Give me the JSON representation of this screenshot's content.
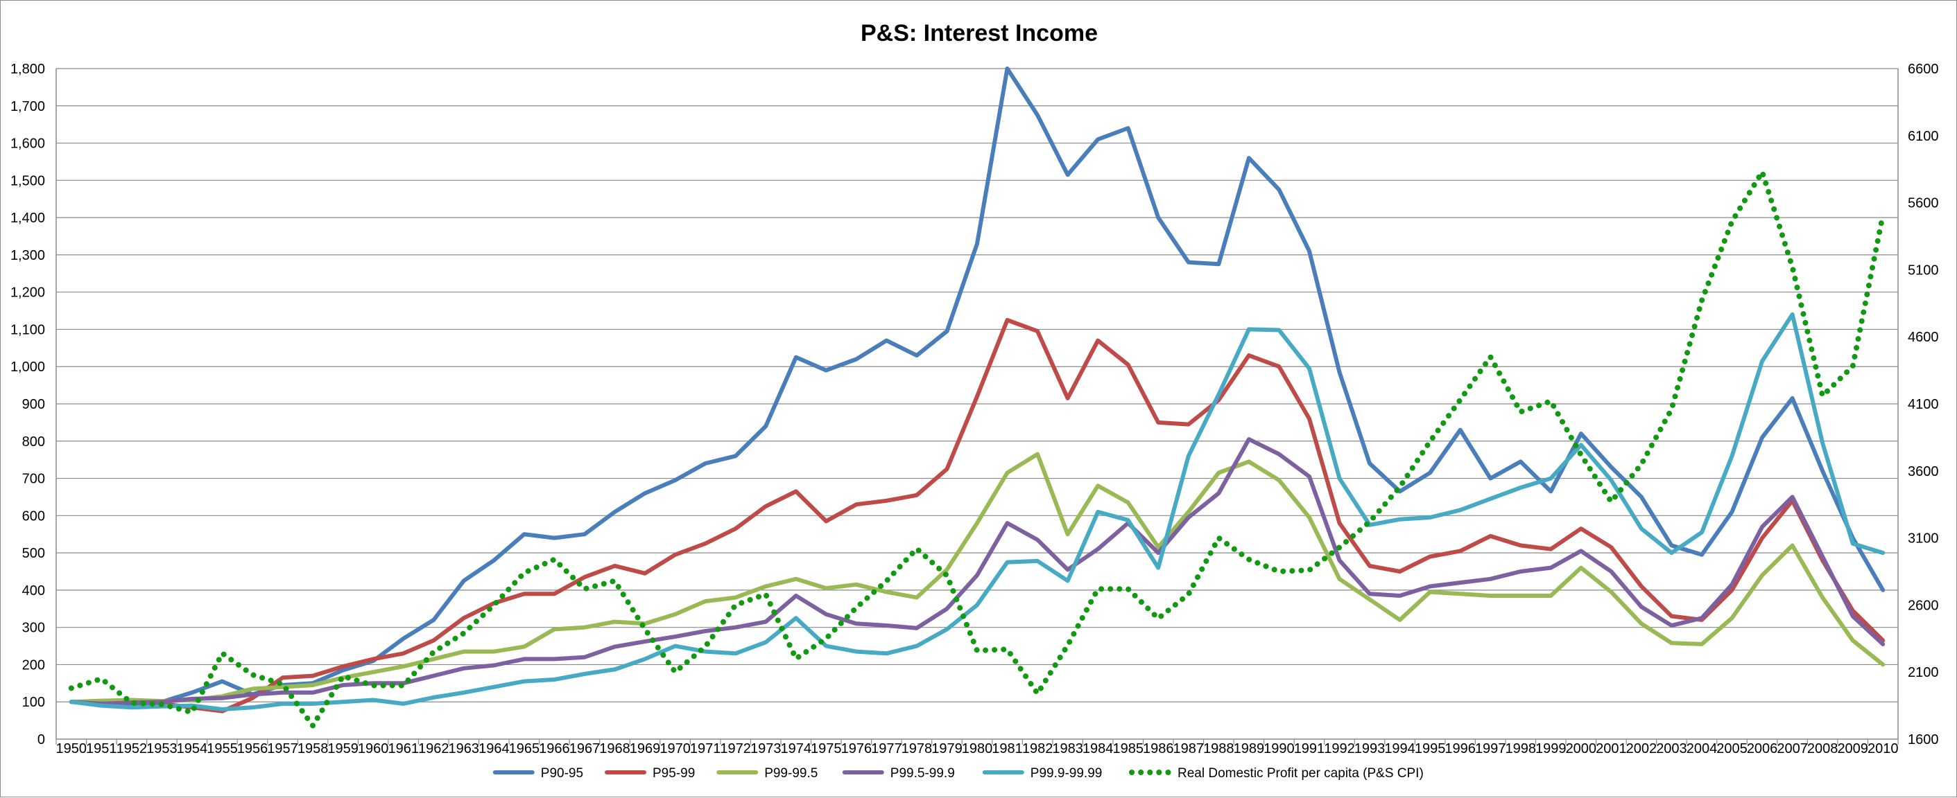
{
  "chart_data": {
    "type": "line",
    "title": "P&S: Interest Income",
    "xlabel": "",
    "ylabel": "",
    "y2label": "",
    "ylim": [
      0,
      1800
    ],
    "y2lim": [
      1600,
      6600
    ],
    "y_ticks": [
      "0",
      "100",
      "200",
      "300",
      "400",
      "500",
      "600",
      "700",
      "800",
      "900",
      "1,000",
      "1,100",
      "1,200",
      "1,300",
      "1,400",
      "1,500",
      "1,600",
      "1,700",
      "1,800"
    ],
    "y2_ticks": [
      "1600",
      "2100",
      "2600",
      "3100",
      "3600",
      "4100",
      "4600",
      "5100",
      "5600",
      "6100",
      "6600"
    ],
    "grid": true,
    "legend_position": "bottom",
    "categories": [
      "1950",
      "1951",
      "1952",
      "1953",
      "1954",
      "1955",
      "1956",
      "1957",
      "1958",
      "1959",
      "1960",
      "1961",
      "1962",
      "1963",
      "1964",
      "1965",
      "1966",
      "1967",
      "1968",
      "1969",
      "1970",
      "1971",
      "1972",
      "1973",
      "1974",
      "1975",
      "1976",
      "1977",
      "1978",
      "1979",
      "1980",
      "1981",
      "1982",
      "1983",
      "1984",
      "1985",
      "1986",
      "1987",
      "1988",
      "1989",
      "1990",
      "1991",
      "1992",
      "1993",
      "1994",
      "1995",
      "1996",
      "1997",
      "1998",
      "1999",
      "2000",
      "2001",
      "2002",
      "2003",
      "2004",
      "2005",
      "2006",
      "2007",
      "2008",
      "2009",
      "2010"
    ],
    "series": [
      {
        "name": "P90-95",
        "axis": "left",
        "color": "#4a7ebb",
        "style": "solid",
        "values": [
          100,
          95,
          95,
          100,
          125,
          155,
          120,
          145,
          150,
          185,
          210,
          270,
          320,
          425,
          480,
          550,
          540,
          550,
          610,
          660,
          695,
          740,
          760,
          840,
          1025,
          990,
          1020,
          1070,
          1030,
          1095,
          1330,
          1800,
          1675,
          1515,
          1610,
          1640,
          1400,
          1280,
          1275,
          1560,
          1475,
          1310,
          985,
          740,
          665,
          715,
          830,
          700,
          745,
          665,
          820,
          730,
          650,
          520,
          495,
          610,
          810,
          915,
          720,
          540,
          400
        ]
      },
      {
        "name": "P95-99",
        "axis": "left",
        "color": "#be4b48",
        "style": "solid",
        "values": [
          100,
          100,
          98,
          95,
          85,
          75,
          110,
          165,
          170,
          195,
          215,
          230,
          265,
          325,
          365,
          390,
          390,
          435,
          465,
          445,
          495,
          525,
          565,
          625,
          665,
          585,
          630,
          640,
          655,
          725,
          920,
          1125,
          1095,
          915,
          1070,
          1005,
          850,
          845,
          910,
          1030,
          1000,
          860,
          580,
          465,
          450,
          490,
          505,
          545,
          520,
          510,
          565,
          515,
          410,
          330,
          320,
          400,
          540,
          640,
          480,
          345,
          265
        ]
      },
      {
        "name": "P99-99.5",
        "axis": "left",
        "color": "#98b954",
        "style": "solid",
        "values": [
          100,
          103,
          105,
          102,
          105,
          115,
          135,
          140,
          145,
          165,
          180,
          195,
          215,
          235,
          235,
          248,
          295,
          300,
          315,
          310,
          335,
          370,
          380,
          410,
          430,
          405,
          415,
          395,
          380,
          455,
          580,
          715,
          765,
          550,
          680,
          635,
          515,
          610,
          715,
          745,
          695,
          595,
          430,
          375,
          320,
          395,
          390,
          385,
          385,
          385,
          460,
          395,
          310,
          258,
          255,
          325,
          440,
          520,
          380,
          265,
          200
        ]
      },
      {
        "name": "P99.5-99.9",
        "axis": "left",
        "color": "#7d60a0",
        "style": "solid",
        "values": [
          100,
          95,
          98,
          100,
          108,
          110,
          120,
          125,
          125,
          145,
          150,
          150,
          170,
          190,
          198,
          215,
          215,
          220,
          248,
          262,
          275,
          290,
          300,
          315,
          385,
          335,
          310,
          305,
          298,
          350,
          440,
          580,
          535,
          455,
          510,
          580,
          500,
          595,
          660,
          805,
          765,
          705,
          480,
          390,
          385,
          410,
          420,
          430,
          450,
          460,
          505,
          450,
          355,
          305,
          325,
          415,
          570,
          650,
          490,
          330,
          255
        ]
      },
      {
        "name": "P99.9-99.99",
        "axis": "left",
        "color": "#46aac5",
        "style": "solid",
        "values": [
          100,
          90,
          85,
          88,
          90,
          80,
          85,
          95,
          95,
          100,
          105,
          95,
          112,
          125,
          140,
          155,
          160,
          175,
          187,
          215,
          250,
          235,
          230,
          260,
          325,
          250,
          235,
          230,
          250,
          295,
          360,
          475,
          478,
          425,
          610,
          588,
          460,
          760,
          925,
          1100,
          1098,
          995,
          700,
          575,
          590,
          595,
          615,
          645,
          675,
          700,
          790,
          695,
          565,
          500,
          555,
          760,
          1015,
          1140,
          795,
          525,
          500
        ]
      },
      {
        "name": "Real Domestic Profit per capita (P&S CPI)",
        "axis": "right",
        "color": "#119911",
        "style": "dotted",
        "values": [
          1980,
          2050,
          1870,
          1860,
          1800,
          2240,
          2080,
          2010,
          1700,
          2070,
          2000,
          2000,
          2250,
          2390,
          2600,
          2840,
          2940,
          2720,
          2780,
          2420,
          2100,
          2290,
          2600,
          2680,
          2200,
          2350,
          2580,
          2780,
          3020,
          2820,
          2260,
          2270,
          1940,
          2300,
          2720,
          2720,
          2500,
          2680,
          3100,
          2940,
          2850,
          2860,
          3030,
          3220,
          3480,
          3820,
          4130,
          4450,
          4040,
          4120,
          3720,
          3370,
          3650,
          4060,
          4870,
          5460,
          5830,
          5120,
          4160,
          4380,
          5510
        ]
      }
    ]
  }
}
